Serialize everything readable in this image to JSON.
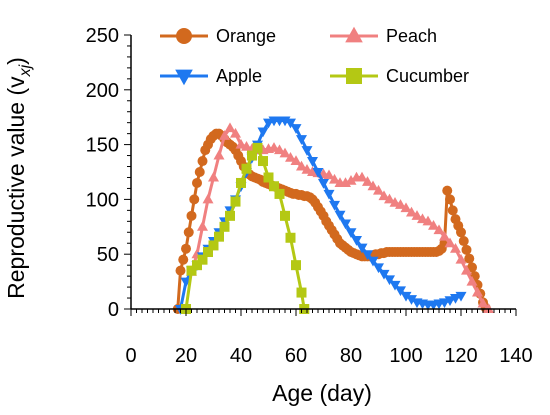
{
  "chart_data": {
    "type": "line",
    "xlabel": "Age (day)",
    "ylabel": "Reproductive value (v",
    "ylabel_sub": "xj",
    "ylabel_close": ")",
    "xlim": [
      0,
      140
    ],
    "ylim": [
      0,
      250
    ],
    "xticks": [
      0,
      20,
      40,
      60,
      80,
      100,
      120,
      140
    ],
    "yticks": [
      0,
      50,
      100,
      150,
      200,
      250
    ],
    "grid": false,
    "legend": "top, two columns",
    "series": [
      {
        "name": "Orange",
        "color": "#D2691E",
        "marker": "circle",
        "x": [
          17,
          18,
          19,
          20,
          21,
          22,
          23,
          24,
          25,
          26,
          27,
          28,
          29,
          30,
          31,
          32,
          33,
          34,
          35,
          36,
          37,
          38,
          39,
          40,
          41,
          42,
          43,
          44,
          45,
          46,
          47,
          48,
          49,
          50,
          51,
          52,
          53,
          54,
          55,
          56,
          57,
          58,
          59,
          60,
          61,
          62,
          63,
          64,
          65,
          66,
          67,
          68,
          69,
          70,
          71,
          72,
          73,
          74,
          75,
          76,
          77,
          78,
          79,
          80,
          81,
          82,
          83,
          84,
          85,
          86,
          87,
          88,
          89,
          90,
          91,
          92,
          93,
          94,
          95,
          96,
          97,
          98,
          99,
          100,
          101,
          102,
          103,
          104,
          105,
          106,
          107,
          108,
          109,
          110,
          111,
          112,
          113,
          114,
          115,
          116,
          117,
          118,
          119,
          120,
          121,
          122,
          123,
          124,
          125,
          126,
          127,
          128,
          129
        ],
        "y": [
          0,
          35,
          45,
          55,
          70,
          85,
          100,
          115,
          125,
          135,
          145,
          150,
          155,
          158,
          160,
          160,
          158,
          155,
          152,
          150,
          148,
          145,
          140,
          135,
          130,
          126,
          123,
          121,
          120,
          119,
          118,
          116,
          115,
          114,
          113,
          112,
          111,
          110,
          109,
          108,
          107,
          106,
          105,
          105,
          104,
          104,
          103,
          103,
          102,
          100,
          97,
          93,
          89,
          85,
          80,
          76,
          72,
          68,
          64,
          60,
          58,
          56,
          54,
          52,
          51,
          50,
          49,
          48,
          48,
          48,
          48,
          49,
          50,
          50,
          51,
          51,
          52,
          52,
          52,
          52,
          52,
          52,
          52,
          52,
          52,
          52,
          52,
          52,
          52,
          52,
          52,
          52,
          52,
          52,
          52,
          53,
          55,
          60,
          108,
          100,
          90,
          82,
          76,
          70,
          62,
          54,
          46,
          38,
          30,
          22,
          14,
          6,
          1
        ]
      },
      {
        "name": "Peach",
        "color": "#F08080",
        "marker": "triangle-up",
        "x": [
          22,
          24,
          26,
          28,
          30,
          32,
          34,
          36,
          38,
          40,
          42,
          44,
          46,
          48,
          50,
          52,
          54,
          56,
          58,
          60,
          62,
          64,
          66,
          68,
          70,
          72,
          74,
          76,
          78,
          80,
          82,
          84,
          86,
          88,
          90,
          92,
          94,
          96,
          98,
          100,
          102,
          104,
          106,
          108,
          110,
          112,
          114,
          116,
          118,
          120,
          122,
          124,
          126,
          128,
          130
        ],
        "y": [
          34,
          50,
          75,
          100,
          120,
          140,
          158,
          165,
          160,
          150,
          148,
          146,
          145,
          145,
          146,
          147,
          145,
          142,
          138,
          135,
          130,
          127,
          125,
          124,
          123,
          122,
          118,
          115,
          115,
          117,
          120,
          120,
          116,
          112,
          108,
          103,
          100,
          97,
          95,
          92,
          88,
          85,
          82,
          80,
          76,
          72,
          66,
          60,
          55,
          45,
          35,
          25,
          15,
          5,
          0
        ]
      },
      {
        "name": "Apple",
        "color": "#1E78F0",
        "marker": "triangle-down",
        "x": [
          18,
          20,
          22,
          24,
          26,
          28,
          30,
          32,
          34,
          36,
          38,
          40,
          42,
          44,
          46,
          48,
          50,
          52,
          54,
          56,
          58,
          60,
          62,
          64,
          66,
          68,
          70,
          72,
          74,
          76,
          78,
          80,
          82,
          84,
          86,
          88,
          90,
          92,
          94,
          96,
          98,
          100,
          102,
          104,
          106,
          108,
          110,
          112,
          114,
          116,
          118,
          120
        ],
        "y": [
          0,
          25,
          35,
          40,
          48,
          55,
          62,
          70,
          80,
          90,
          100,
          112,
          125,
          138,
          150,
          162,
          170,
          172,
          172,
          172,
          170,
          165,
          155,
          145,
          135,
          125,
          115,
          105,
          95,
          86,
          78,
          70,
          63,
          56,
          50,
          44,
          38,
          32,
          27,
          22,
          17,
          12,
          9,
          6,
          5,
          4,
          4,
          5,
          6,
          8,
          10,
          12
        ]
      },
      {
        "name": "Cucumber",
        "color": "#B4C814",
        "marker": "square",
        "x": [
          20,
          22,
          24,
          26,
          28,
          30,
          32,
          34,
          36,
          38,
          40,
          42,
          44,
          46,
          48,
          50,
          52,
          54,
          56,
          58,
          60,
          62,
          63
        ],
        "y": [
          0,
          35,
          40,
          45,
          52,
          58,
          66,
          75,
          85,
          98,
          115,
          128,
          140,
          147,
          135,
          120,
          112,
          105,
          85,
          65,
          40,
          15,
          0
        ]
      }
    ]
  }
}
